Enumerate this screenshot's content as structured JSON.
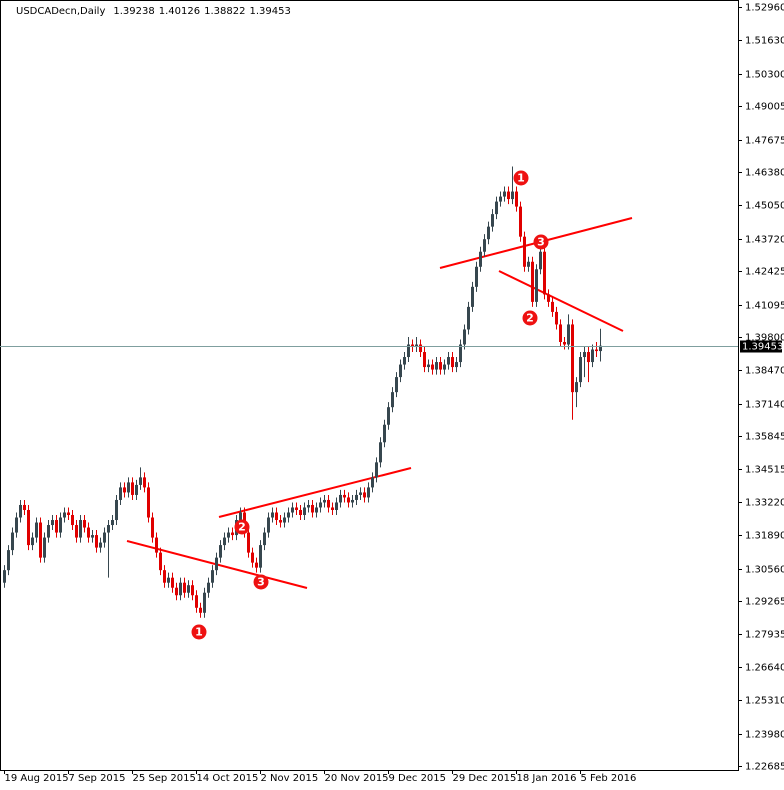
{
  "chart_data": {
    "type": "candlestick",
    "title": "USDCADecn,Daily",
    "categories": [
      "19 Aug 2015",
      null,
      null,
      null,
      null,
      null,
      null,
      null,
      null,
      null,
      null,
      null,
      null,
      null,
      null,
      null,
      "7 Sep 2015",
      null,
      null,
      null,
      null,
      null,
      null,
      null,
      null,
      null,
      null,
      null,
      null,
      null,
      null,
      null,
      "25 Sep 2015",
      null,
      null,
      null,
      null,
      null,
      null,
      null,
      null,
      null,
      null,
      null,
      null,
      null,
      null,
      null,
      "14 Oct 2015",
      null,
      null,
      null,
      null,
      null,
      null,
      null,
      null,
      null,
      null,
      null,
      null,
      null,
      null,
      null,
      "2 Nov 2015",
      null,
      null,
      null,
      null,
      null,
      null,
      null,
      null,
      null,
      null,
      null,
      null,
      null,
      null,
      null,
      "20 Nov 2015",
      null,
      null,
      null,
      null,
      null,
      null,
      null,
      null,
      null,
      null,
      null,
      null,
      null,
      null,
      null,
      "9 Dec 2015",
      null,
      null,
      null,
      null,
      null,
      null,
      null,
      null,
      null,
      null,
      null,
      null,
      null,
      null,
      null,
      "29 Dec 2015",
      null,
      null,
      null,
      null,
      null,
      null,
      null,
      null,
      null,
      null,
      null,
      null,
      null,
      null,
      null,
      "18 Jan 2016",
      null,
      null,
      null,
      null,
      null,
      null,
      null,
      null,
      null,
      null,
      null,
      null,
      null,
      null,
      null,
      "5 Feb 2016",
      null,
      null,
      null,
      null,
      null
    ],
    "open": [
      1.3,
      1.305,
      1.313,
      1.32,
      1.326,
      1.331,
      1.329,
      1.315,
      1.318,
      1.324,
      1.31,
      1.318,
      1.323,
      1.325,
      1.32,
      1.326,
      1.328,
      1.327,
      1.323,
      1.318,
      1.325,
      1.322,
      1.318,
      1.319,
      1.314,
      1.316,
      1.32,
      1.323,
      1.325,
      1.333,
      1.338,
      1.336,
      1.34,
      1.335,
      1.339,
      1.342,
      1.338,
      1.326,
      1.318,
      1.312,
      1.305,
      1.3,
      1.302,
      1.298,
      1.295,
      1.3,
      1.296,
      1.299,
      1.295,
      1.29,
      1.288,
      1.296,
      1.3,
      1.305,
      1.31,
      1.315,
      1.318,
      1.32,
      1.319,
      1.325,
      1.328,
      1.32,
      1.312,
      1.308,
      1.306,
      1.315,
      1.32,
      1.326,
      1.328,
      1.325,
      1.324,
      1.326,
      1.328,
      1.33,
      1.329,
      1.327,
      1.33,
      1.331,
      1.328,
      1.33,
      1.332,
      1.333,
      1.33,
      1.329,
      1.332,
      1.335,
      1.334,
      1.332,
      1.333,
      1.335,
      1.336,
      1.334,
      1.338,
      1.342,
      1.348,
      1.356,
      1.363,
      1.37,
      1.376,
      1.382,
      1.387,
      1.39,
      1.395,
      1.394,
      1.395,
      1.392,
      1.386,
      1.387,
      1.385,
      1.388,
      1.385,
      1.387,
      1.39,
      1.386,
      1.388,
      1.395,
      1.401,
      1.41,
      1.418,
      1.426,
      1.432,
      1.437,
      1.442,
      1.447,
      1.452,
      1.454,
      1.456,
      1.453,
      1.456,
      1.45,
      1.438,
      1.426,
      1.428,
      1.412,
      1.425,
      1.432,
      1.415,
      1.412,
      1.408,
      1.403,
      1.396,
      1.395,
      1.403,
      1.376,
      1.38,
      1.39,
      1.392,
      1.388,
      1.393,
      1.39238
    ],
    "high": [
      1.307,
      1.315,
      1.322,
      1.328,
      1.333,
      1.333,
      1.331,
      1.32,
      1.326,
      1.326,
      1.32,
      1.325,
      1.327,
      1.327,
      1.328,
      1.33,
      1.33,
      1.329,
      1.325,
      1.327,
      1.327,
      1.324,
      1.321,
      1.321,
      1.318,
      1.322,
      1.325,
      1.327,
      1.335,
      1.34,
      1.34,
      1.342,
      1.342,
      1.341,
      1.346,
      1.344,
      1.34,
      1.328,
      1.32,
      1.314,
      1.307,
      1.304,
      1.304,
      1.3,
      1.302,
      1.302,
      1.301,
      1.301,
      1.297,
      1.292,
      1.298,
      1.302,
      1.307,
      1.312,
      1.317,
      1.32,
      1.322,
      1.322,
      1.327,
      1.33,
      1.33,
      1.322,
      1.314,
      1.31,
      1.317,
      1.322,
      1.328,
      1.33,
      1.33,
      1.327,
      1.328,
      1.33,
      1.332,
      1.332,
      1.331,
      1.332,
      1.333,
      1.333,
      1.332,
      1.334,
      1.335,
      1.335,
      1.332,
      1.334,
      1.337,
      1.337,
      1.336,
      1.335,
      1.337,
      1.338,
      1.338,
      1.34,
      1.344,
      1.35,
      1.358,
      1.365,
      1.372,
      1.378,
      1.384,
      1.389,
      1.392,
      1.398,
      1.397,
      1.398,
      1.397,
      1.394,
      1.389,
      1.389,
      1.39,
      1.39,
      1.389,
      1.392,
      1.392,
      1.39,
      1.397,
      1.403,
      1.412,
      1.42,
      1.428,
      1.434,
      1.439,
      1.444,
      1.449,
      1.454,
      1.456,
      1.458,
      1.458,
      1.466,
      1.458,
      1.452,
      1.44,
      1.43,
      1.43,
      1.427,
      1.434,
      1.434,
      1.417,
      1.414,
      1.41,
      1.405,
      1.398,
      1.407,
      1.405,
      1.382,
      1.392,
      1.394,
      1.394,
      1.395,
      1.396,
      1.40126
    ],
    "low": [
      1.298,
      1.303,
      1.311,
      1.318,
      1.324,
      1.327,
      1.313,
      1.313,
      1.316,
      1.308,
      1.308,
      1.316,
      1.321,
      1.318,
      1.318,
      1.324,
      1.325,
      1.321,
      1.316,
      1.316,
      1.32,
      1.316,
      1.316,
      1.312,
      1.312,
      1.314,
      1.302,
      1.321,
      1.323,
      1.331,
      1.334,
      1.334,
      1.333,
      1.333,
      1.337,
      1.336,
      1.324,
      1.316,
      1.31,
      1.303,
      1.298,
      1.298,
      1.296,
      1.293,
      1.293,
      1.294,
      1.294,
      1.293,
      1.288,
      1.286,
      1.286,
      1.294,
      1.298,
      1.303,
      1.308,
      1.313,
      1.316,
      1.317,
      1.317,
      1.323,
      1.318,
      1.31,
      1.306,
      1.304,
      1.304,
      1.313,
      1.318,
      1.324,
      1.323,
      1.322,
      1.322,
      1.324,
      1.326,
      1.327,
      1.325,
      1.325,
      1.328,
      1.326,
      1.326,
      1.328,
      1.33,
      1.328,
      1.327,
      1.327,
      1.33,
      1.332,
      1.33,
      1.33,
      1.331,
      1.333,
      1.332,
      1.332,
      1.336,
      1.34,
      1.346,
      1.354,
      1.361,
      1.368,
      1.374,
      1.38,
      1.385,
      1.388,
      1.392,
      1.392,
      1.39,
      1.384,
      1.384,
      1.383,
      1.383,
      1.383,
      1.383,
      1.385,
      1.384,
      1.384,
      1.386,
      1.393,
      1.399,
      1.408,
      1.416,
      1.424,
      1.43,
      1.435,
      1.44,
      1.445,
      1.45,
      1.452,
      1.451,
      1.451,
      1.448,
      1.436,
      1.424,
      1.424,
      1.41,
      1.41,
      1.423,
      1.413,
      1.41,
      1.406,
      1.401,
      1.394,
      1.393,
      1.393,
      1.365,
      1.37,
      1.378,
      1.382,
      1.38,
      1.386,
      1.39,
      1.38822
    ],
    "close": [
      1.305,
      1.313,
      1.32,
      1.326,
      1.331,
      1.329,
      1.315,
      1.318,
      1.324,
      1.31,
      1.318,
      1.323,
      1.325,
      1.32,
      1.326,
      1.328,
      1.327,
      1.323,
      1.318,
      1.325,
      1.322,
      1.318,
      1.319,
      1.314,
      1.316,
      1.32,
      1.323,
      1.325,
      1.333,
      1.338,
      1.336,
      1.34,
      1.335,
      1.339,
      1.342,
      1.338,
      1.326,
      1.318,
      1.312,
      1.305,
      1.3,
      1.302,
      1.298,
      1.295,
      1.3,
      1.296,
      1.299,
      1.295,
      1.29,
      1.288,
      1.296,
      1.3,
      1.305,
      1.31,
      1.315,
      1.318,
      1.32,
      1.319,
      1.325,
      1.328,
      1.32,
      1.312,
      1.308,
      1.306,
      1.315,
      1.32,
      1.326,
      1.328,
      1.325,
      1.324,
      1.326,
      1.328,
      1.33,
      1.329,
      1.327,
      1.33,
      1.331,
      1.328,
      1.33,
      1.332,
      1.333,
      1.33,
      1.329,
      1.332,
      1.335,
      1.334,
      1.332,
      1.333,
      1.335,
      1.336,
      1.334,
      1.338,
      1.342,
      1.348,
      1.356,
      1.363,
      1.37,
      1.376,
      1.382,
      1.387,
      1.39,
      1.395,
      1.394,
      1.395,
      1.392,
      1.386,
      1.387,
      1.385,
      1.388,
      1.385,
      1.387,
      1.39,
      1.386,
      1.388,
      1.395,
      1.401,
      1.41,
      1.418,
      1.426,
      1.432,
      1.437,
      1.442,
      1.447,
      1.452,
      1.454,
      1.456,
      1.453,
      1.456,
      1.45,
      1.438,
      1.426,
      1.428,
      1.412,
      1.425,
      1.432,
      1.415,
      1.412,
      1.408,
      1.403,
      1.396,
      1.395,
      1.403,
      1.376,
      1.38,
      1.39,
      1.392,
      1.388,
      1.393,
      1.39238,
      1.39453
    ],
    "ylim": [
      1.2253,
      1.5316
    ],
    "yticks": [
      {
        "value": 1.5296,
        "label": "1.52960"
      },
      {
        "value": 1.5163,
        "label": "1.51630"
      },
      {
        "value": 1.503,
        "label": "1.50300"
      },
      1.49005,
      1.47675,
      {
        "value": 1.4638,
        "label": "1.46380"
      },
      {
        "value": 1.4505,
        "label": "1.45050"
      },
      {
        "value": 1.4372,
        "label": "1.43720"
      },
      1.42425,
      1.41095,
      {
        "value": 1.398,
        "label": "1.39800"
      },
      {
        "value": 1.3847,
        "label": "1.38470"
      },
      {
        "value": 1.3714,
        "label": "1.37140"
      },
      1.35845,
      1.34515,
      {
        "value": 1.3322,
        "label": "1.33220"
      },
      {
        "value": 1.3189,
        "label": "1.31890"
      },
      {
        "value": 1.3056,
        "label": "1.30560"
      },
      1.29265,
      1.27935,
      {
        "value": 1.2664,
        "label": "1.26640"
      },
      {
        "value": 1.2531,
        "label": "1.25310"
      },
      {
        "value": 1.2398,
        "label": "1.23980"
      },
      1.22685
    ],
    "up_color": "#37474f",
    "down_color": "#e00000",
    "grid": false,
    "annotations": [
      "1",
      "2",
      "3",
      "1",
      "2",
      "3"
    ]
  }
}
